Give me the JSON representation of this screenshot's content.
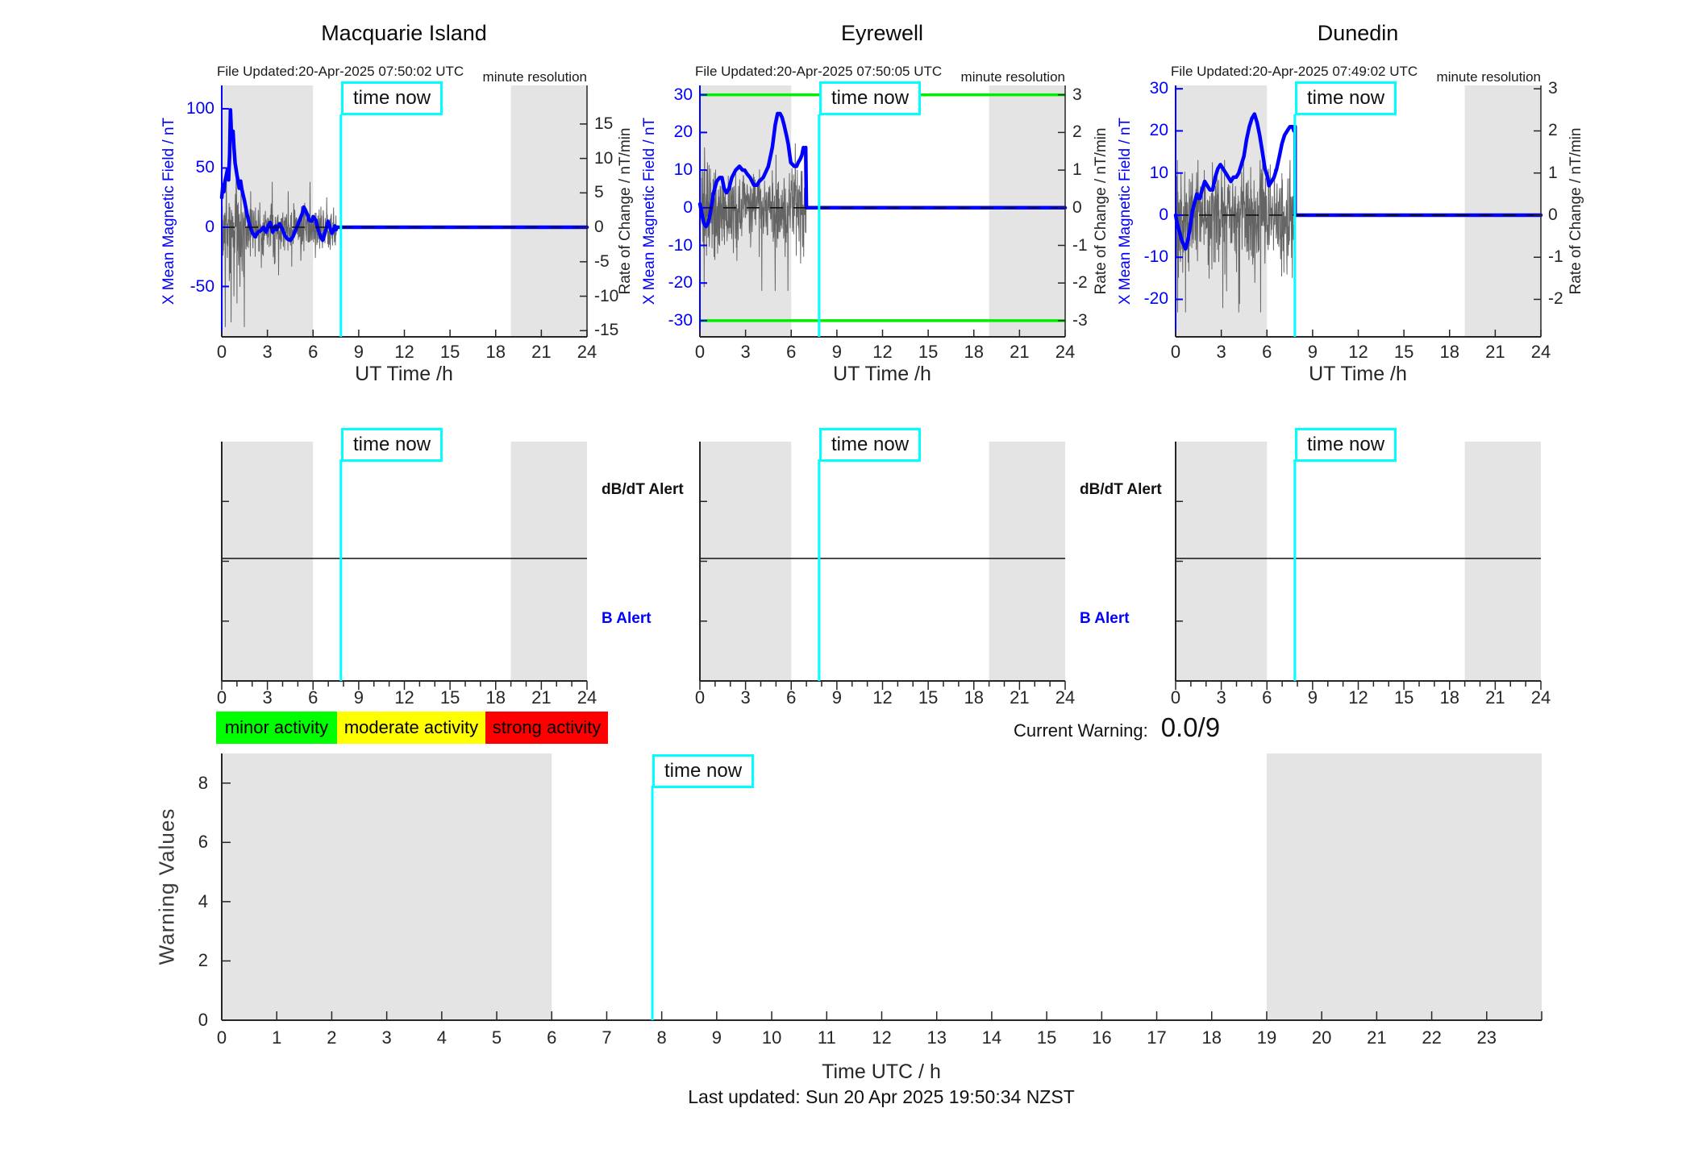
{
  "colors": {
    "blue": "#0000ff",
    "cyan": "#00ffff",
    "green": "#00ee00",
    "noise": "#555555",
    "band": "#e4e4e4",
    "axis": "#262626",
    "dash": "#111111",
    "legend_green": "#00ff00",
    "legend_yellow": "#ffff00",
    "legend_red": "#ff0000"
  },
  "time_now": {
    "label": "time now",
    "hour": 7.83
  },
  "shaded_hours": [
    [
      0,
      6
    ],
    [
      19,
      24
    ]
  ],
  "chart_data": [
    {
      "type": "line",
      "title": "Macquarie Island",
      "file_updated": "File Updated:20-Apr-2025 07:50:02 UTC",
      "note": "minute resolution",
      "ylabel_left": "X Mean Magnetic Field / nT",
      "ylabel_right": "Rate of Change / nT/min",
      "xlabel": "UT Time /h",
      "x_ticks": [
        0,
        3,
        6,
        9,
        12,
        15,
        18,
        21,
        24
      ],
      "left_ticks": [
        100,
        50,
        0,
        -50
      ],
      "right_ticks": [
        15,
        10,
        5,
        0,
        -5,
        -10,
        -15
      ],
      "left_range": [
        -92.5,
        119.7
      ],
      "right_range": [
        -15.9,
        20.6
      ],
      "green_lines": [],
      "data_end": 7.55,
      "blue": [
        [
          0,
          25
        ],
        [
          0.08,
          36
        ],
        [
          0.14,
          30
        ],
        [
          0.2,
          38
        ],
        [
          0.3,
          44
        ],
        [
          0.38,
          49
        ],
        [
          0.45,
          40
        ],
        [
          0.52,
          62
        ],
        [
          0.57,
          99
        ],
        [
          0.62,
          84
        ],
        [
          0.67,
          76
        ],
        [
          0.74,
          81
        ],
        [
          0.8,
          68
        ],
        [
          0.88,
          54
        ],
        [
          1.0,
          44
        ],
        [
          1.06,
          40
        ],
        [
          1.15,
          33
        ],
        [
          1.24,
          39
        ],
        [
          1.32,
          32
        ],
        [
          1.5,
          22
        ],
        [
          1.68,
          10
        ],
        [
          1.85,
          1
        ],
        [
          2.03,
          -5
        ],
        [
          2.2,
          -8
        ],
        [
          2.38,
          -4
        ],
        [
          2.56,
          -3
        ],
        [
          2.74,
          0
        ],
        [
          2.91,
          -4
        ],
        [
          3.04,
          1
        ],
        [
          3.18,
          4
        ],
        [
          3.35,
          -4
        ],
        [
          3.53,
          1
        ],
        [
          3.62,
          -2
        ],
        [
          3.8,
          3
        ],
        [
          3.97,
          -1
        ],
        [
          4.15,
          -7
        ],
        [
          4.33,
          -10
        ],
        [
          4.5,
          -11
        ],
        [
          4.68,
          -8
        ],
        [
          4.77,
          -5
        ],
        [
          4.94,
          0
        ],
        [
          5.12,
          6
        ],
        [
          5.3,
          12
        ],
        [
          5.39,
          17
        ],
        [
          5.48,
          15
        ],
        [
          5.65,
          10
        ],
        [
          5.74,
          6
        ],
        [
          5.92,
          5
        ],
        [
          6.01,
          9
        ],
        [
          6.18,
          6
        ],
        [
          6.36,
          -3
        ],
        [
          6.54,
          -9
        ],
        [
          6.63,
          -11
        ],
        [
          6.71,
          -8
        ],
        [
          6.89,
          0
        ],
        [
          6.98,
          5
        ],
        [
          7.07,
          2
        ],
        [
          7.15,
          -2
        ],
        [
          7.24,
          -5
        ],
        [
          7.33,
          -3
        ],
        [
          7.42,
          1
        ],
        [
          7.51,
          -2
        ],
        [
          7.55,
          0
        ]
      ],
      "noise": {
        "seed": 7,
        "sigma": 8,
        "spike_prob": 0.03,
        "spike_mul": 2.4,
        "early_until": 1.6,
        "early_mul": 2.1,
        "clamp": [
          -84,
          52
        ],
        "bigs": [
          [
            0.3,
            42
          ],
          [
            0.5,
            -45
          ],
          [
            0.62,
            -80
          ],
          [
            0.8,
            -58
          ],
          [
            1.0,
            -64
          ],
          [
            1.2,
            -50
          ],
          [
            1.45,
            -42
          ],
          [
            1.9,
            30
          ],
          [
            2.6,
            -34
          ],
          [
            3.5,
            -30
          ],
          [
            4.6,
            -33
          ],
          [
            5.2,
            -28
          ],
          [
            5.8,
            38
          ],
          [
            6.9,
            25
          ]
        ]
      }
    },
    {
      "type": "line",
      "title": "Eyrewell",
      "file_updated": "File Updated:20-Apr-2025 07:50:05 UTC",
      "note": "minute resolution",
      "ylabel_left": "X Mean Magnetic Field / nT",
      "ylabel_right": "Rate of Change / nT/min",
      "xlabel": "UT Time /h",
      "x_ticks": [
        0,
        3,
        6,
        9,
        12,
        15,
        18,
        21,
        24
      ],
      "left_ticks": [
        30,
        20,
        10,
        0,
        -10,
        -20,
        -30
      ],
      "right_ticks": [
        3,
        2,
        1,
        0,
        -1,
        -2,
        -3
      ],
      "left_range": [
        -34.3,
        32.5
      ],
      "right_range": [
        -3.43,
        3.25
      ],
      "green_lines": [
        30,
        -30
      ],
      "data_end": 7.0,
      "blue": [
        [
          0,
          1
        ],
        [
          0.1,
          -1
        ],
        [
          0.25,
          -4
        ],
        [
          0.4,
          -5
        ],
        [
          0.55,
          -4
        ],
        [
          0.7,
          -1
        ],
        [
          0.9,
          4
        ],
        [
          1.1,
          7
        ],
        [
          1.3,
          8
        ],
        [
          1.45,
          8
        ],
        [
          1.6,
          5
        ],
        [
          1.75,
          4
        ],
        [
          1.9,
          5
        ],
        [
          2.1,
          8
        ],
        [
          2.35,
          10
        ],
        [
          2.6,
          11
        ],
        [
          2.8,
          10
        ],
        [
          2.94,
          10
        ],
        [
          3.1,
          9
        ],
        [
          3.3,
          8
        ],
        [
          3.55,
          6
        ],
        [
          3.75,
          6
        ],
        [
          3.9,
          7
        ],
        [
          4.16,
          8
        ],
        [
          4.5,
          11
        ],
        [
          4.76,
          16
        ],
        [
          4.95,
          22
        ],
        [
          5.1,
          25
        ],
        [
          5.27,
          25
        ],
        [
          5.4,
          24
        ],
        [
          5.53,
          22
        ],
        [
          5.7,
          19
        ],
        [
          5.8,
          17
        ],
        [
          5.97,
          12
        ],
        [
          6.2,
          11
        ],
        [
          6.35,
          11
        ],
        [
          6.46,
          12
        ],
        [
          6.6,
          13
        ],
        [
          6.7,
          14
        ],
        [
          6.8,
          16
        ],
        [
          6.88,
          15
        ],
        [
          6.95,
          16
        ],
        [
          7.0,
          0
        ]
      ],
      "noise": {
        "seed": 13,
        "sigma": 4.5,
        "spike_prob": 0.025,
        "spike_mul": 2.2,
        "early_until": 0.5,
        "early_mul": 1.4,
        "clamp": [
          -22,
          17
        ],
        "bigs": [
          [
            0.28,
            -21
          ],
          [
            0.5,
            12
          ],
          [
            2.2,
            -12
          ],
          [
            3.9,
            -13
          ],
          [
            5.0,
            14
          ],
          [
            5.6,
            -13
          ],
          [
            6.4,
            10
          ]
        ]
      }
    },
    {
      "type": "line",
      "title": "Dunedin",
      "file_updated": "File Updated:20-Apr-2025 07:49:02 UTC",
      "note": "minute resolution",
      "ylabel_left": "X Mean Magnetic Field / nT",
      "ylabel_right": "Rate of Change / nT/min",
      "xlabel": "UT Time /h",
      "x_ticks": [
        0,
        3,
        6,
        9,
        12,
        15,
        18,
        21,
        24
      ],
      "left_ticks": [
        30,
        20,
        10,
        0,
        -10,
        -20
      ],
      "right_ticks": [
        3,
        2,
        1,
        0,
        -1,
        -2
      ],
      "left_range": [
        -28.9,
        30.8
      ],
      "right_range": [
        -2.89,
        3.08
      ],
      "green_lines": [],
      "data_end": 7.85,
      "blue": [
        [
          0,
          0
        ],
        [
          0.1,
          -2
        ],
        [
          0.26,
          -4
        ],
        [
          0.4,
          -6
        ],
        [
          0.53,
          -7
        ],
        [
          0.65,
          -8
        ],
        [
          0.8,
          -6
        ],
        [
          0.95,
          -3
        ],
        [
          1.1,
          1
        ],
        [
          1.25,
          3
        ],
        [
          1.39,
          5
        ],
        [
          1.5,
          4
        ],
        [
          1.6,
          4
        ],
        [
          1.74,
          6
        ],
        [
          1.91,
          8
        ],
        [
          2.08,
          7
        ],
        [
          2.25,
          6
        ],
        [
          2.43,
          6
        ],
        [
          2.6,
          9
        ],
        [
          2.77,
          11
        ],
        [
          2.94,
          12
        ],
        [
          3.12,
          11
        ],
        [
          3.29,
          10
        ],
        [
          3.46,
          9
        ],
        [
          3.63,
          8
        ],
        [
          3.8,
          9
        ],
        [
          3.98,
          9
        ],
        [
          4.15,
          10
        ],
        [
          4.32,
          12
        ],
        [
          4.49,
          14
        ],
        [
          4.66,
          18
        ],
        [
          4.84,
          21
        ],
        [
          5.01,
          23
        ],
        [
          5.18,
          24
        ],
        [
          5.35,
          22
        ],
        [
          5.52,
          19
        ],
        [
          5.7,
          15
        ],
        [
          5.87,
          11
        ],
        [
          6.04,
          9
        ],
        [
          6.13,
          7
        ],
        [
          6.3,
          8
        ],
        [
          6.47,
          9
        ],
        [
          6.64,
          11
        ],
        [
          6.82,
          14
        ],
        [
          6.99,
          17
        ],
        [
          7.16,
          19
        ],
        [
          7.33,
          20
        ],
        [
          7.51,
          21
        ],
        [
          7.59,
          21
        ],
        [
          7.68,
          21
        ],
        [
          7.77,
          20
        ],
        [
          7.85,
          21
        ],
        [
          7.85,
          0
        ]
      ],
      "noise": {
        "seed": 21,
        "sigma": 5,
        "spike_prob": 0.03,
        "spike_mul": 2.2,
        "early_until": 0.2,
        "early_mul": 1.3,
        "clamp": [
          -23,
          13
        ],
        "bigs": [
          [
            0.12,
            13
          ],
          [
            0.35,
            10
          ],
          [
            2.2,
            -15
          ],
          [
            3.1,
            -22
          ],
          [
            3.35,
            -18
          ],
          [
            4.2,
            -21
          ],
          [
            5.2,
            -16
          ],
          [
            6.5,
            9
          ]
        ]
      }
    },
    {
      "type": "line",
      "name": "warning-values",
      "ylabel": "Warning Values",
      "xlabel": "Time UTC / h",
      "y_ticks": [
        0,
        2,
        4,
        6,
        8
      ],
      "y_range": [
        0,
        9
      ],
      "x_range": [
        0,
        24
      ],
      "x_tick_labels": [
        0,
        1,
        2,
        3,
        4,
        5,
        6,
        7,
        8,
        9,
        10,
        11,
        12,
        13,
        14,
        15,
        16,
        17,
        18,
        19,
        20,
        21,
        22,
        23
      ],
      "series": []
    }
  ],
  "alerts": {
    "db_label": "dB/dT Alert",
    "b_label": "B Alert",
    "x_ticks": [
      0,
      3,
      6,
      9,
      12,
      15,
      18,
      21,
      24
    ]
  },
  "legend": {
    "items": [
      {
        "label": "minor activity",
        "color": "#00ff00"
      },
      {
        "label": "moderate activity",
        "color": "#ffff00"
      },
      {
        "label": "strong activity",
        "color": "#ff0000"
      }
    ]
  },
  "current_warning": {
    "label": "Current Warning:",
    "value": "0.0/9"
  },
  "footer": {
    "updated": "Last updated: Sun 20 Apr 2025 19:50:34 NZST"
  }
}
